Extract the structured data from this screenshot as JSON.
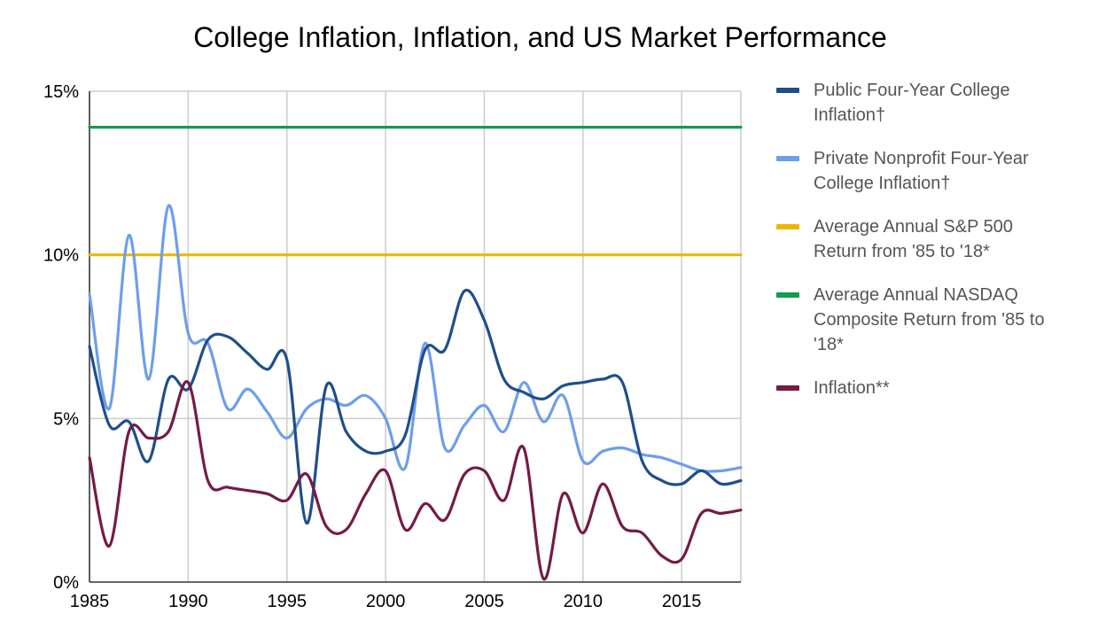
{
  "chart_data": {
    "type": "line",
    "title": "College Inflation, Inflation, and US Market Performance",
    "xlabel": "",
    "ylabel": "",
    "xlim": [
      1985,
      2018
    ],
    "ylim": [
      0,
      15
    ],
    "x_ticks": [
      1985,
      1990,
      1995,
      2000,
      2005,
      2010,
      2015
    ],
    "y_ticks": [
      0,
      5,
      10,
      15
    ],
    "y_tick_labels": [
      "0%",
      "5%",
      "10%",
      "15%"
    ],
    "grid": true,
    "legend_position": "right",
    "x": [
      1985,
      1986,
      1987,
      1988,
      1989,
      1990,
      1991,
      1992,
      1993,
      1994,
      1995,
      1996,
      1997,
      1998,
      1999,
      2000,
      2001,
      2002,
      2003,
      2004,
      2005,
      2006,
      2007,
      2008,
      2009,
      2010,
      2011,
      2012,
      2013,
      2014,
      2015,
      2016,
      2017,
      2018
    ],
    "series": [
      {
        "name": "Public Four-Year College Inflation†",
        "color": "#1f4e8c",
        "values": [
          7.2,
          4.8,
          4.9,
          3.7,
          6.2,
          5.9,
          7.4,
          7.5,
          7.0,
          6.5,
          6.8,
          1.8,
          6.0,
          4.6,
          4.0,
          4.0,
          4.5,
          7.1,
          7.1,
          8.9,
          8.0,
          6.2,
          5.8,
          5.6,
          6.0,
          6.1,
          6.2,
          6.1,
          3.7,
          3.1,
          3.0,
          3.4,
          3.0,
          3.1
        ]
      },
      {
        "name": "Private Nonprofit Four-Year College Inflation†",
        "color": "#6d9eeb",
        "values": [
          8.8,
          5.3,
          10.6,
          6.2,
          11.5,
          7.6,
          7.3,
          5.3,
          5.9,
          5.2,
          4.4,
          5.3,
          5.6,
          5.4,
          5.7,
          5.0,
          3.5,
          7.3,
          4.1,
          4.8,
          5.4,
          4.6,
          6.1,
          4.9,
          5.7,
          3.7,
          4.0,
          4.1,
          3.9,
          3.8,
          3.6,
          3.4,
          3.4,
          3.5
        ]
      },
      {
        "name": "Average Annual S&P 500 Return from '85 to '18*",
        "color": "#f1b500",
        "values": [
          10.0,
          10.0,
          10.0,
          10.0,
          10.0,
          10.0,
          10.0,
          10.0,
          10.0,
          10.0,
          10.0,
          10.0,
          10.0,
          10.0,
          10.0,
          10.0,
          10.0,
          10.0,
          10.0,
          10.0,
          10.0,
          10.0,
          10.0,
          10.0,
          10.0,
          10.0,
          10.0,
          10.0,
          10.0,
          10.0,
          10.0,
          10.0,
          10.0,
          10.0
        ]
      },
      {
        "name": "Average Annual NASDAQ Composite Return from '85 to '18*",
        "color": "#129c4e",
        "values": [
          13.9,
          13.9,
          13.9,
          13.9,
          13.9,
          13.9,
          13.9,
          13.9,
          13.9,
          13.9,
          13.9,
          13.9,
          13.9,
          13.9,
          13.9,
          13.9,
          13.9,
          13.9,
          13.9,
          13.9,
          13.9,
          13.9,
          13.9,
          13.9,
          13.9,
          13.9,
          13.9,
          13.9,
          13.9,
          13.9,
          13.9,
          13.9,
          13.9,
          13.9
        ]
      },
      {
        "name": "Inflation**",
        "color": "#741b47",
        "values": [
          3.8,
          1.1,
          4.6,
          4.4,
          4.6,
          6.1,
          3.1,
          2.9,
          2.8,
          2.7,
          2.5,
          3.3,
          1.7,
          1.6,
          2.7,
          3.4,
          1.6,
          2.4,
          1.9,
          3.3,
          3.4,
          2.5,
          4.1,
          0.1,
          2.7,
          1.5,
          3.0,
          1.7,
          1.5,
          0.8,
          0.7,
          2.1,
          2.1,
          2.2
        ]
      }
    ]
  }
}
